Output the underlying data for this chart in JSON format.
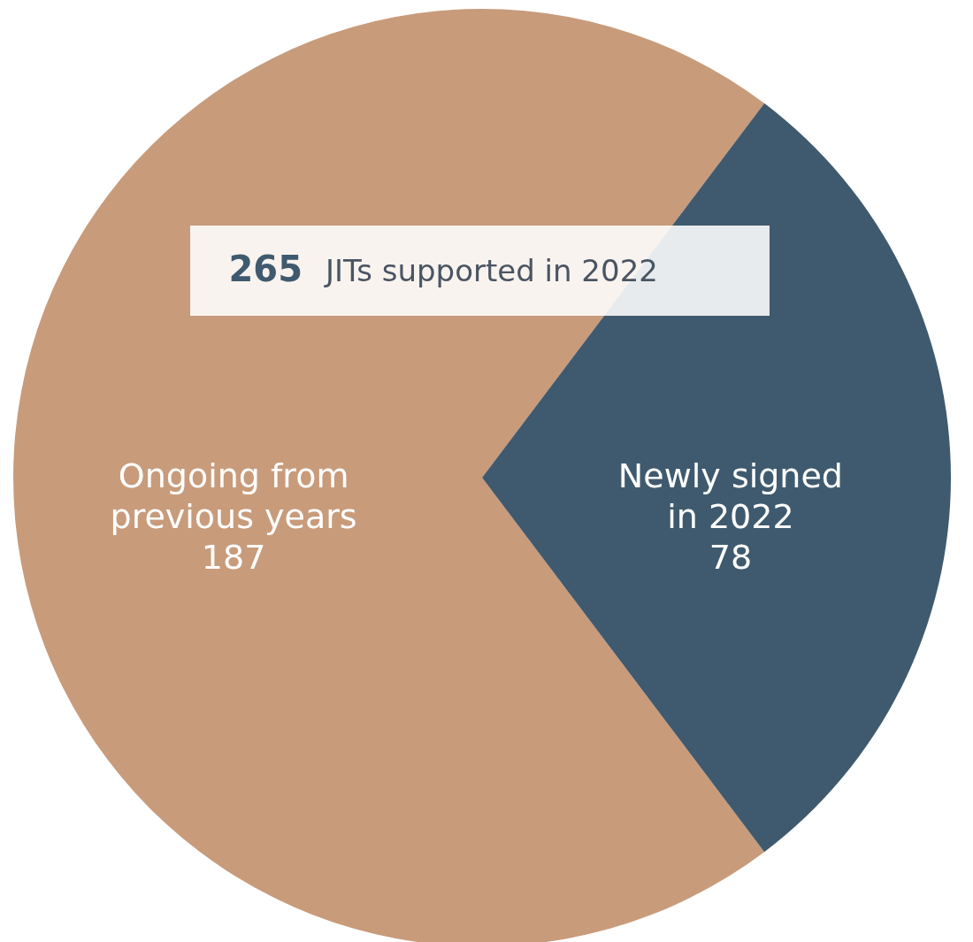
{
  "chart_data": {
    "type": "pie",
    "title": "265 JITs supported in 2022",
    "categories": [
      "Ongoing from\nprevious years",
      "Newly signed\nin 2022"
    ],
    "values": [
      187,
      78
    ],
    "colors": [
      "#c89b7b",
      "#3f5a6e"
    ],
    "data_labels": true
  }
}
